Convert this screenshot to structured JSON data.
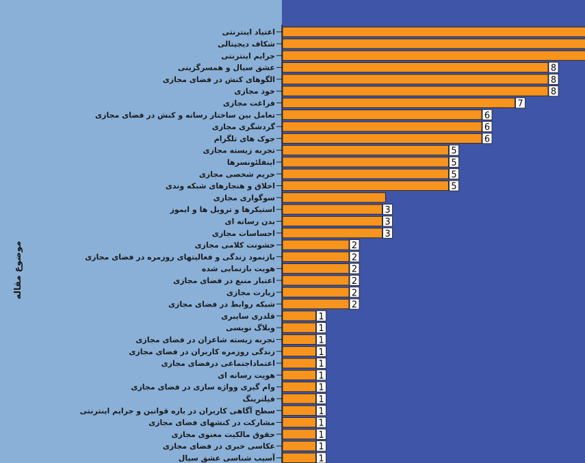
{
  "colors": {
    "left_panel": "#8ab0d8",
    "plot_area": "#3f55a8",
    "bar_fill": "#f7941d",
    "bar_stroke": "#1a1a1a",
    "label_box": "#ffffff"
  },
  "chart_data": {
    "type": "bar",
    "orientation": "horizontal",
    "ylabel": "موضوع مقاله",
    "grid": false,
    "legend": "none",
    "xlim": [
      0,
      9.2
    ],
    "categories": [
      "اعتیاد اینترنتی",
      "شکاف دیجیتالی",
      "جرایم اینترنتی",
      "عشق سیال و همسرگزینی",
      "الگوهای کنش در فضای مجازی",
      "خود مجازی",
      "فراغت مجازی",
      "تعامل بین ساختار رسانه و کنش در فضای مجازی",
      "گردشگری مجازی",
      "جوک های تلگرام",
      "تجربه زیسته مجازی",
      "اینفلئونسرها",
      "حریم شخصی مجازی",
      "اخلاق و هنجارهای شبکه وندی",
      "سوگواری مجازی",
      "استیکرها و ترویل ها و ایموز",
      "بدن رسانه ای",
      "احساسات مجازی",
      "خشونت کلامی مجازی",
      "بازنمود زندگی و فعالیتهای روزمره در فضای مجازی",
      "هویت بازنمایی شده",
      "اعتبار منبع در فضای مجازی",
      "زیارت مجازی",
      "شبکه روابط در فضای مجازی",
      "قلدری سایبری",
      "وبلاگ نویسی",
      "تجربه زیسته شاعران در فضای مجازی",
      "زندگی روزمره کاربران در فضای مجازی",
      "اعتماداجتماعی درفضای مجازی",
      "هویت رسانه ای",
      "وام گیری وواژه سازی در فضای مجازی",
      "فیلترینگ",
      "سطح آگاهی کاربران در باره قوانین و جرایم اینترنتی",
      "مشارکت در کنشهای فضای مجازی",
      "حقوق مالکیت معنوی مجازی",
      "عکاسی خبری در فضای مجازی",
      "آسیب شناسی عشق سیال"
    ],
    "values": [
      9.5,
      9.5,
      9.5,
      8,
      8,
      8,
      7,
      6,
      6,
      6,
      5,
      5,
      5,
      5,
      3.1,
      3,
      3,
      3,
      2,
      2,
      2,
      2,
      2,
      2,
      1,
      1,
      1,
      1,
      1,
      1,
      1,
      1,
      1,
      1,
      1,
      1,
      1
    ],
    "data_labels": [
      "",
      "",
      "",
      "8",
      "8",
      "8",
      "7",
      "6",
      "6",
      "6",
      "5",
      "5",
      "5",
      "5",
      "",
      "3",
      "3",
      "3",
      "2",
      "2",
      "2",
      "2",
      "2",
      "2",
      "1",
      "1",
      "1",
      "1",
      "1",
      "1",
      "1",
      "1",
      "1",
      "1",
      "1",
      "1",
      "1"
    ]
  }
}
